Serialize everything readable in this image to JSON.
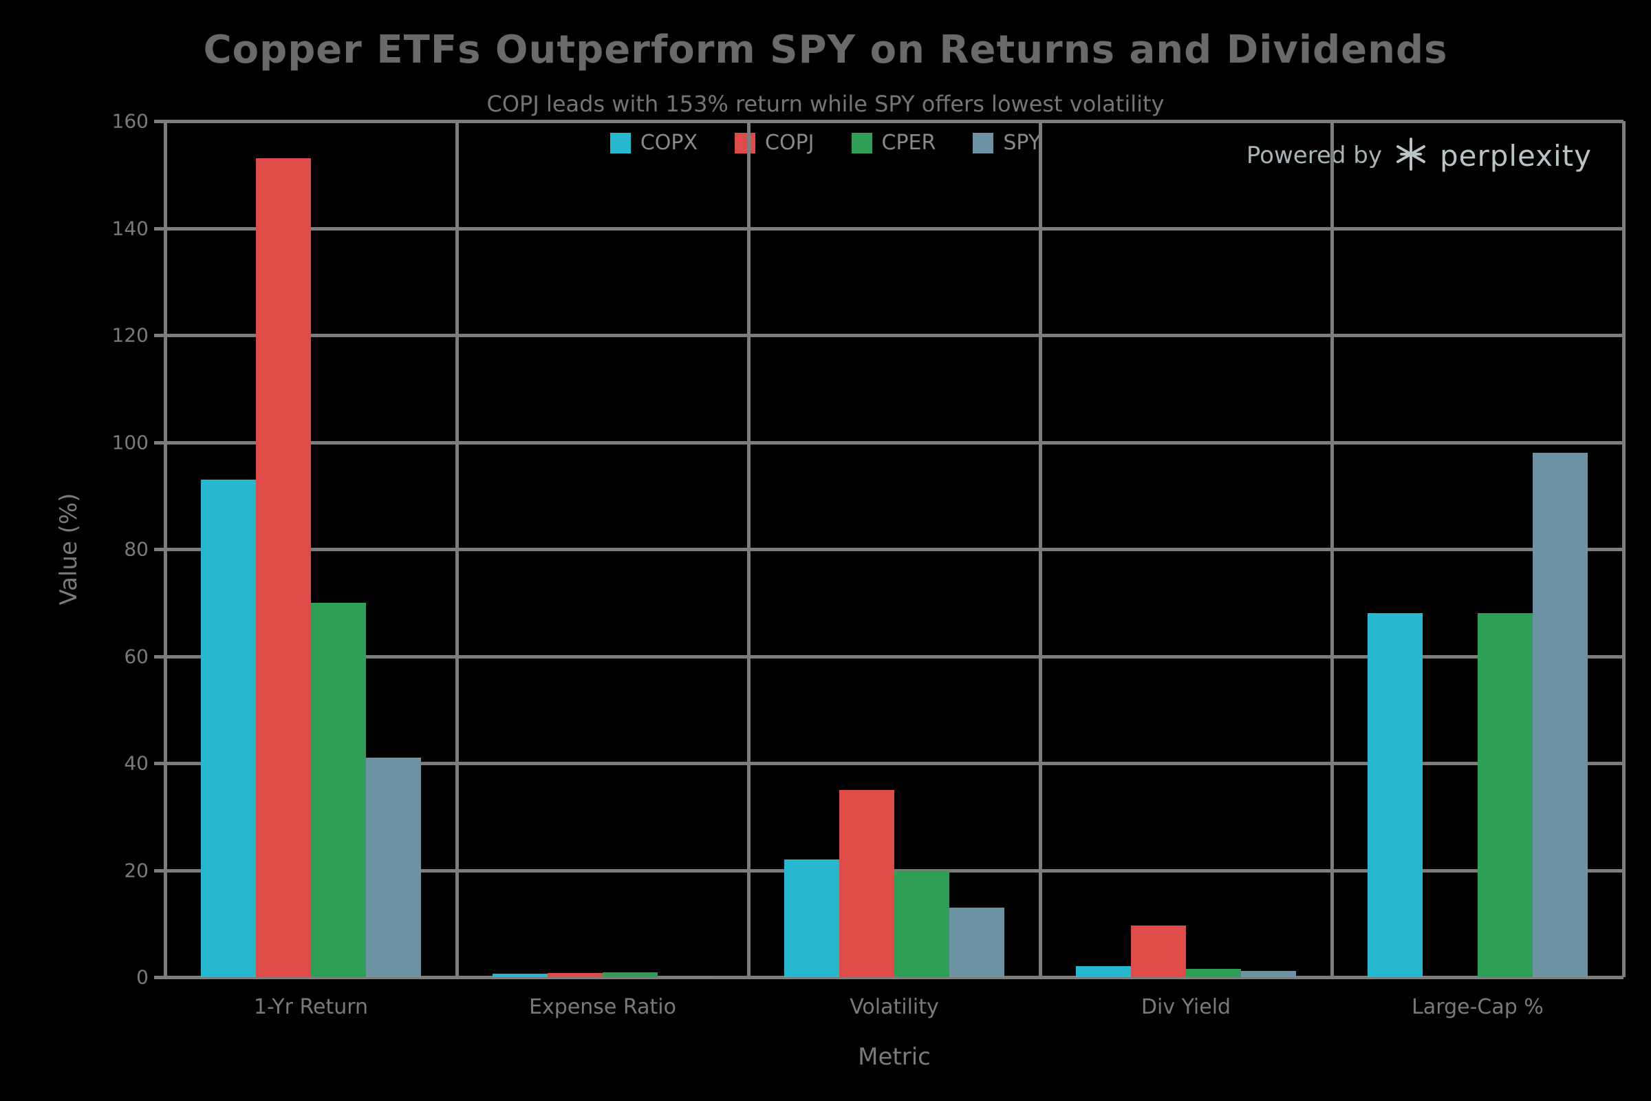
{
  "powered_by": {
    "label": "Powered by",
    "brand": "perplexity",
    "logo_icon": "perplexity-asterisk-icon"
  },
  "colors": {
    "background": "#000000",
    "grid": "#7d7d7d",
    "text": "#7a7a7a",
    "title_text": "#6a6a6a",
    "copx": "#26b8cf",
    "copj": "#df4b48",
    "cper": "#2f9e57",
    "spy": "#6b93a4"
  },
  "chart_data": {
    "type": "bar",
    "title": "Copper ETFs Outperform SPY on Returns and Dividends",
    "subtitle": "COPJ leads with 153% return while SPY offers lowest volatility",
    "categories": [
      "1-Yr Return",
      "Expense Ratio",
      "Volatility",
      "Div Yield",
      "Large-Cap %"
    ],
    "series": [
      {
        "name": "COPX",
        "color": "#26b8cf",
        "values": [
          93,
          0.65,
          22,
          2,
          68
        ]
      },
      {
        "name": "COPJ",
        "color": "#df4b48",
        "values": [
          153,
          0.75,
          35,
          9.6,
          0
        ]
      },
      {
        "name": "CPER",
        "color": "#2f9e57",
        "values": [
          70,
          0.88,
          20,
          1.5,
          68
        ]
      },
      {
        "name": "SPY",
        "color": "#6b93a4",
        "values": [
          41,
          0.09,
          13,
          1.2,
          98
        ]
      }
    ],
    "xlabel": "Metric",
    "ylabel": "Value (%)",
    "ylim": [
      0,
      160
    ],
    "yticks": [
      0,
      20,
      40,
      60,
      80,
      100,
      120,
      140,
      160
    ],
    "grid": true,
    "legend_position": "top-center"
  }
}
